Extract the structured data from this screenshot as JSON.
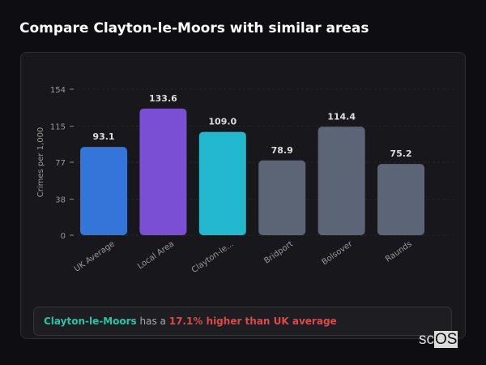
{
  "title": "Compare Clayton-le-Moors with similar areas",
  "chart_data": {
    "type": "bar",
    "ylabel": "Crimes per 1,000",
    "ylim": [
      0,
      154
    ],
    "yticks": [
      0,
      38,
      77,
      115,
      154
    ],
    "categories": [
      "UK Average",
      "Local Area",
      "Clayton-le...",
      "Bridport",
      "Bolsover",
      "Raunds"
    ],
    "values": [
      93.1,
      133.6,
      109.0,
      78.9,
      114.4,
      75.2
    ],
    "value_labels": [
      "93.1",
      "133.6",
      "109.0",
      "78.9",
      "114.4",
      "75.2"
    ],
    "colors": [
      "#3375d8",
      "#7b4fd4",
      "#22b8cf",
      "#5b6576",
      "#5b6576",
      "#5b6576"
    ]
  },
  "summary": {
    "area": "Clayton-le-Moors",
    "middle": " has a ",
    "comparison": "17.1% higher than UK average"
  },
  "logo": {
    "sc": "sc",
    "os": "OS"
  }
}
